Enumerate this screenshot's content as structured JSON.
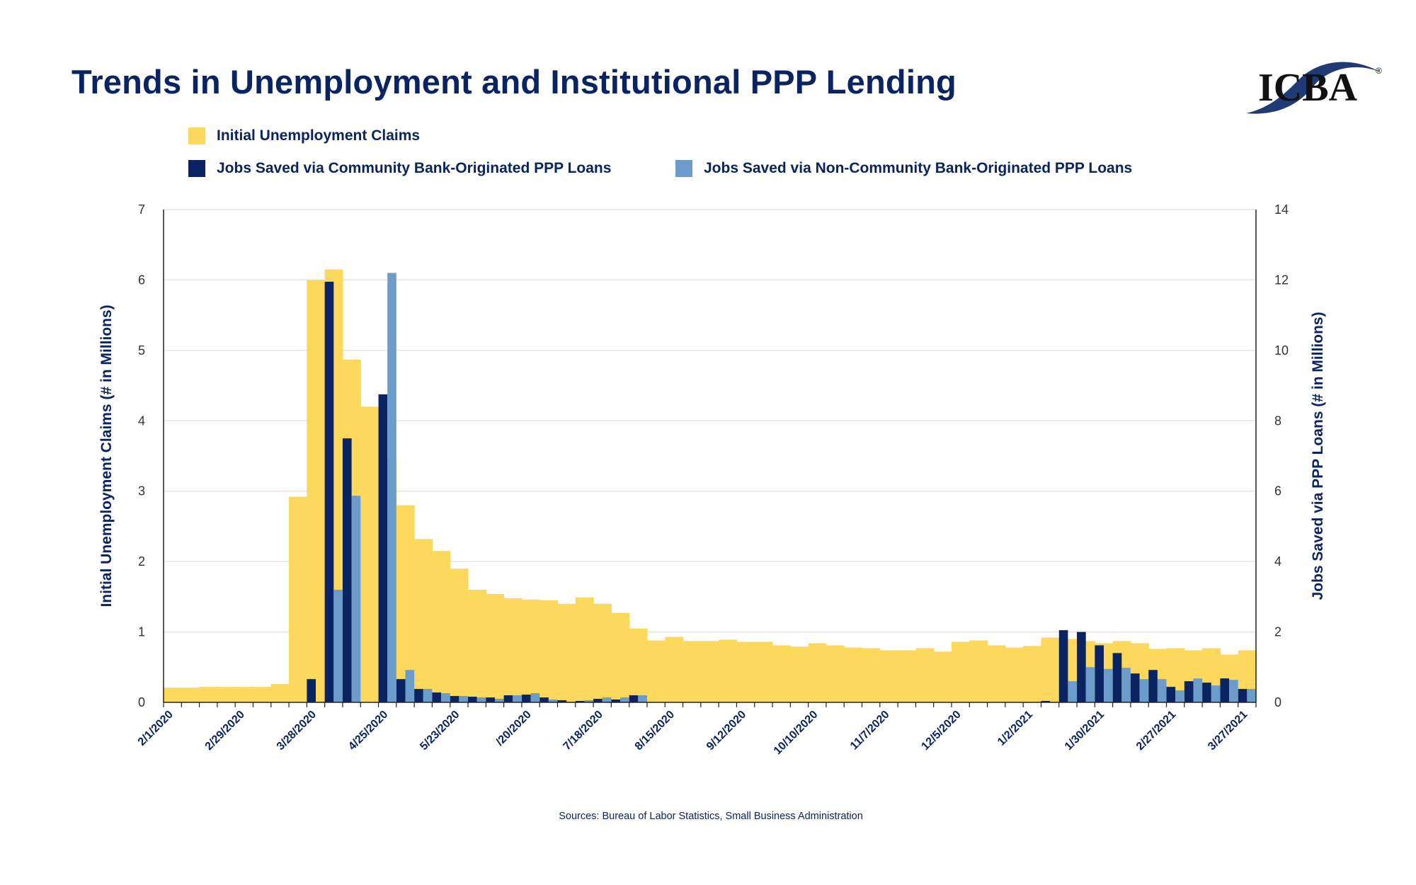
{
  "title": "Trends in Unemployment and Institutional PPP Lending",
  "logo_text": "ICBA",
  "source": "Sources: Bureau of Labor Statistics, Small Business Administration",
  "colors": {
    "claims": "#fcd95c",
    "community": "#0a2463",
    "noncommunity": "#6b9ccb",
    "title": "#0a2463"
  },
  "chart_data": {
    "type": "bar",
    "title": "Trends in Unemployment and Institutional PPP Lending",
    "ylabel": "Initial Unemployment Claims (# in Millions)",
    "y2label": "Jobs Saved via PPP Loans (# in Millions)",
    "ylim": [
      0,
      7
    ],
    "y2lim": [
      0,
      14
    ],
    "yticks": [
      "0",
      "1",
      "2",
      "3",
      "4",
      "5",
      "6",
      "7"
    ],
    "y2ticks": [
      "0",
      "2",
      "4",
      "6",
      "8",
      "10",
      "12",
      "14"
    ],
    "grid": true,
    "legend_position": "top-left",
    "x_start": "2/1/2020",
    "x_interval": "weekly",
    "xtick_labels": [
      "2/1/2020",
      "2/29/2020",
      "3/28/2020",
      "4/25/2020",
      "5/23/2020",
      "/20/2020",
      "7/18/2020",
      "8/15/2020",
      "9/12/2020",
      "10/10/2020",
      "11/7/2020",
      "12/5/2020",
      "1/2/2021",
      "1/30/2021",
      "2/27/2021",
      "3/27/2021"
    ],
    "series": [
      {
        "name": "Initial Unemployment Claims",
        "axis": "left",
        "values": [
          0.21,
          0.21,
          0.22,
          0.22,
          0.22,
          0.22,
          0.26,
          2.92,
          6.0,
          6.15,
          4.87,
          4.2,
          3.45,
          2.8,
          2.32,
          2.15,
          1.9,
          1.6,
          1.54,
          1.48,
          1.46,
          1.45,
          1.4,
          1.49,
          1.4,
          1.27,
          1.05,
          0.88,
          0.93,
          0.87,
          0.87,
          0.89,
          0.86,
          0.86,
          0.81,
          0.79,
          0.84,
          0.81,
          0.78,
          0.77,
          0.74,
          0.74,
          0.77,
          0.72,
          0.86,
          0.88,
          0.81,
          0.78,
          0.8,
          0.92,
          0.9,
          0.87,
          0.84,
          0.87,
          0.84,
          0.76,
          0.77,
          0.74,
          0.77,
          0.68,
          0.74
        ]
      },
      {
        "name": "Jobs Saved via Community Bank-Originated PPP Loans",
        "axis": "right",
        "values": [
          0,
          0,
          0,
          0,
          0,
          0,
          0,
          0,
          0.66,
          11.95,
          7.5,
          0,
          8.75,
          0.66,
          0.38,
          0.28,
          0.18,
          0.16,
          0.14,
          0.2,
          0.22,
          0.14,
          0.06,
          0.04,
          0.1,
          0.08,
          0.2,
          0,
          0,
          0,
          0,
          0,
          0,
          0,
          0,
          0,
          0,
          0,
          0,
          0,
          0,
          0,
          0,
          0,
          0,
          0,
          0,
          0,
          0,
          0.04,
          2.05,
          2.0,
          1.62,
          1.4,
          0.82,
          0.92,
          0.44,
          0.6,
          0.56,
          0.68,
          0.38
        ]
      },
      {
        "name": "Jobs Saved via Non-Community Bank-Originated PPP Loans",
        "axis": "right",
        "values": [
          0,
          0,
          0,
          0,
          0,
          0,
          0,
          0,
          0.02,
          3.2,
          5.87,
          0,
          12.2,
          0.92,
          0.38,
          0.26,
          0.18,
          0.14,
          0.1,
          0.2,
          0.26,
          0.08,
          0.02,
          0.06,
          0.14,
          0.14,
          0.2,
          0,
          0,
          0,
          0,
          0,
          0,
          0,
          0,
          0,
          0,
          0,
          0,
          0,
          0,
          0,
          0,
          0,
          0,
          0,
          0,
          0,
          0,
          0,
          0.6,
          1.0,
          0.95,
          0.98,
          0.66,
          0.66,
          0.34,
          0.68,
          0.48,
          0.64,
          0.38
        ]
      }
    ]
  }
}
